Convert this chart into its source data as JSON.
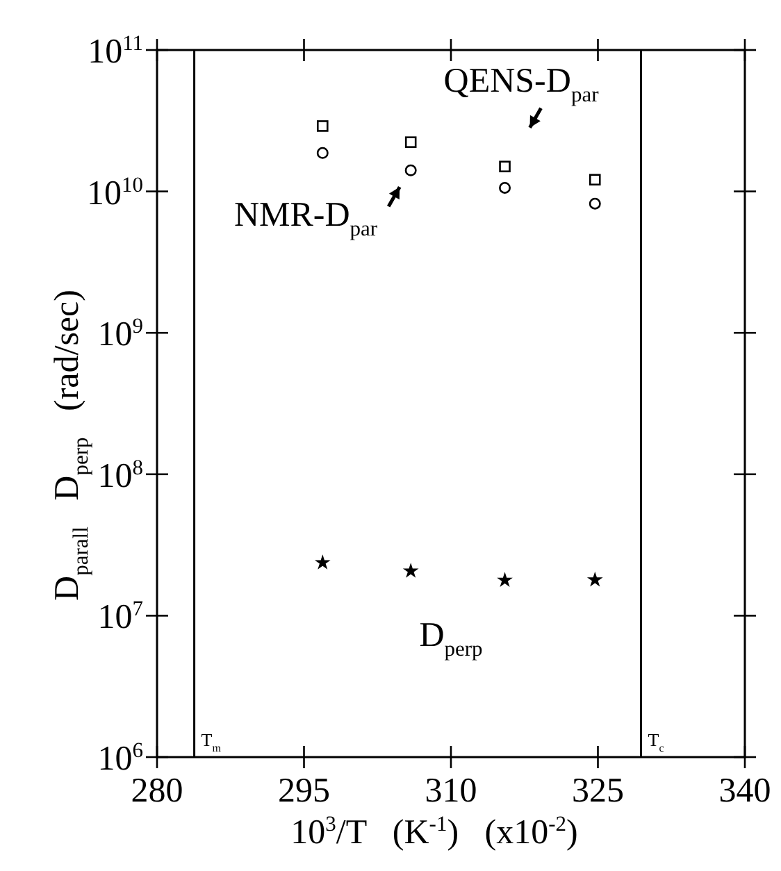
{
  "chart_data": {
    "type": "scatter",
    "xlabel": "10$^{3}$/T   (K$^{-1}$)   (x10$^{-2}$)",
    "ylabel": "D$_{parall}$   D$_{perp}$   (rad/sec)",
    "x": [
      296.9,
      305.9,
      315.5,
      324.7
    ],
    "series": [
      {
        "color": "#000000",
        "marker": "square",
        "values": [
          29000000000,
          22300000000,
          15000000000,
          12100000000
        ]
      },
      {
        "color": "#000000",
        "marker": "circle",
        "values": [
          18700000000,
          14100000000,
          10600000000,
          8200000000
        ]
      },
      {
        "color": "#000000",
        "marker": "star",
        "values": [
          23700000,
          20700000,
          17800000,
          17900000
        ]
      }
    ],
    "log": "y",
    "xlim": [
      280,
      340
    ],
    "xticks": [
      280,
      295,
      310,
      325,
      340
    ],
    "ylim": [
      1000000,
      100000000000
    ],
    "yticks": [
      {
        "value": 1000000,
        "label": "10$^{6}$"
      },
      {
        "value": 10000000,
        "label": "10$^{7}$"
      },
      {
        "value": 100000000,
        "label": "10$^{8}$"
      },
      {
        "value": 1000000000,
        "label": "10$^{9}$"
      },
      {
        "value": 10000000000,
        "label": "10$^{10}$"
      },
      {
        "value": 100000000000,
        "label": "10$^{11}$"
      }
    ],
    "ref_lines": [
      {
        "axis": "x",
        "value": 283.8,
        "label": "T$_{m}$"
      },
      {
        "axis": "x",
        "value": 329.4,
        "label": "T$_{c}$"
      }
    ],
    "annotations": [
      {
        "text": "QENS-D$_{par}$",
        "x": 315.5,
        "y": 15000000000
      },
      {
        "text": "NMR-D$_{par}$",
        "x": 305.9,
        "y": 14100000000
      },
      "D$_{perp}$"
    ],
    "grid": false
  }
}
